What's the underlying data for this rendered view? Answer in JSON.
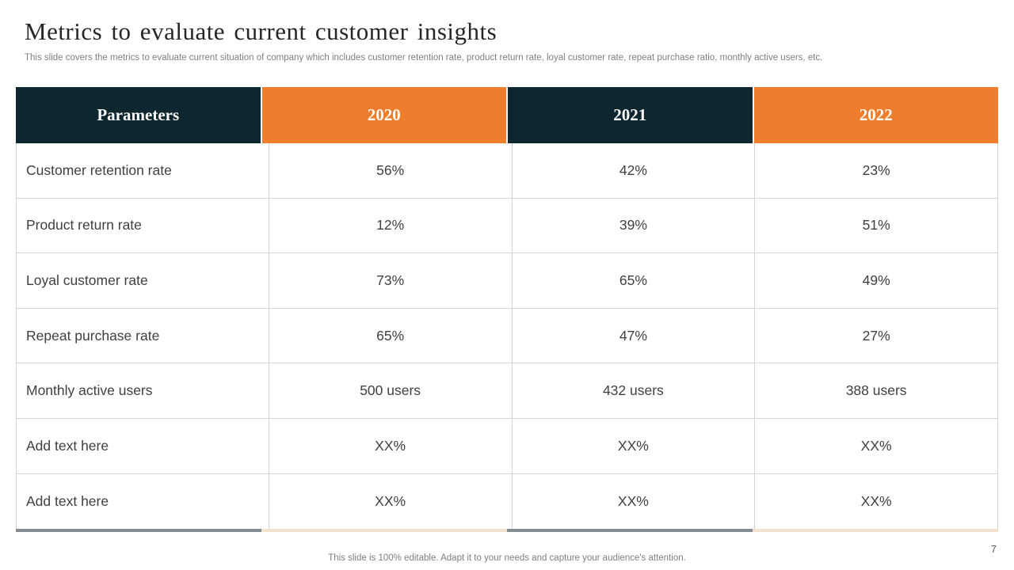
{
  "slide": {
    "title": "Metrics to evaluate current customer insights",
    "subtitle": "This slide covers the metrics to evaluate current situation of company which includes customer retention rate, product return rate, loyal customer rate, repeat purchase ratio, monthly active users, etc.",
    "footer": "This slide is 100% editable. Adapt it to your needs and capture your audience's attention.",
    "page_number": "7"
  },
  "colors": {
    "header_dark": "#0e2630",
    "header_orange": "#ee7d2e",
    "body_border": "#d4d4d4",
    "bottom_border_gray": "#838c8e",
    "bottom_border_cream": "#f2e4cc",
    "body_text": "#3f3f3f"
  },
  "table": {
    "headers": [
      "Parameters",
      "2020",
      "2021",
      "2022"
    ],
    "rows": [
      [
        "Customer retention rate",
        "56%",
        "42%",
        "23%"
      ],
      [
        "Product return rate",
        "12%",
        "39%",
        "51%"
      ],
      [
        "Loyal customer rate",
        "73%",
        "65%",
        "49%"
      ],
      [
        "Repeat purchase rate",
        "65%",
        "47%",
        "27%"
      ],
      [
        "Monthly active users",
        "500 users",
        "432 users",
        "388 users"
      ],
      [
        "Add text here",
        "XX%",
        "XX%",
        "XX%"
      ],
      [
        "Add text here",
        "XX%",
        "XX%",
        "XX%"
      ]
    ]
  }
}
